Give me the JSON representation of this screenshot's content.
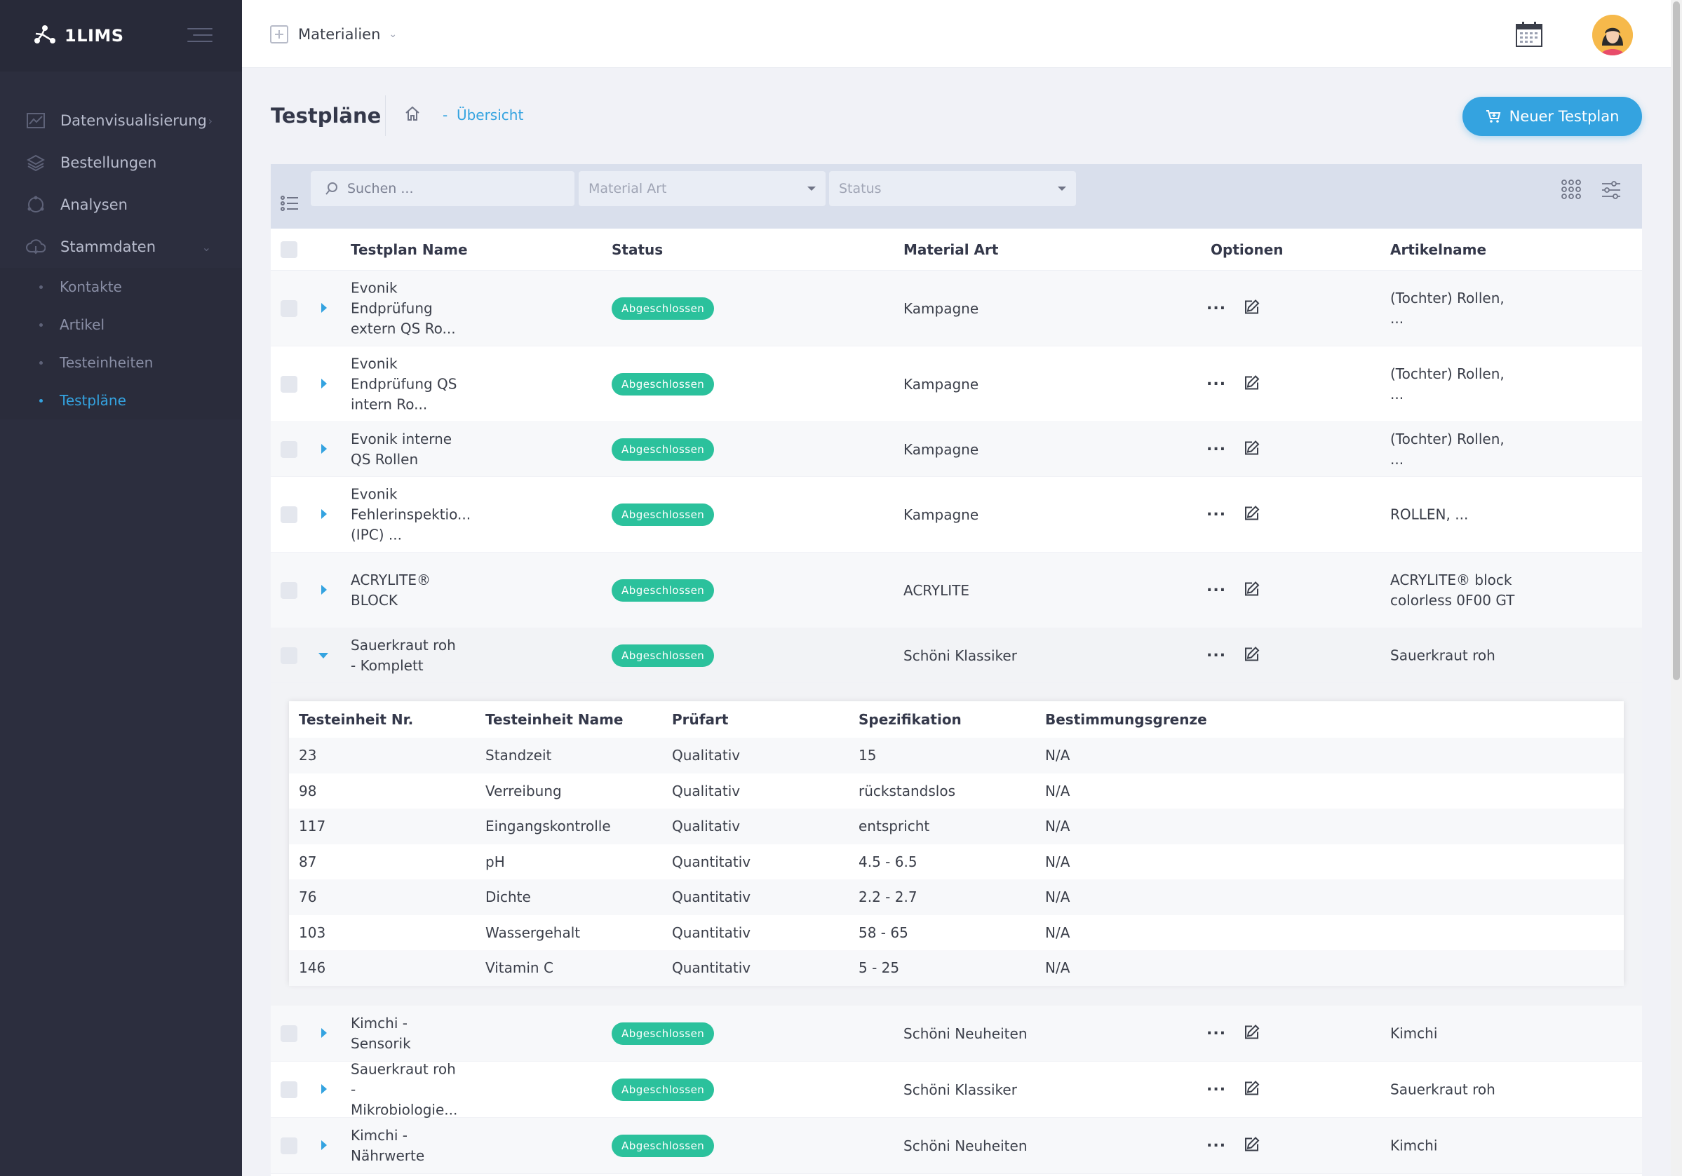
{
  "sidebar": {
    "brand": "1LIMS",
    "items": [
      {
        "label": "Datenvisualisierung",
        "icon": "chart-line-icon",
        "has_arrow": true
      },
      {
        "label": "Bestellungen",
        "icon": "layers-icon"
      },
      {
        "label": "Analysen",
        "icon": "circle-icon"
      },
      {
        "label": "Stammdaten",
        "icon": "cloud-icon",
        "expanded": true
      }
    ],
    "subitems": [
      {
        "label": "Kontakte"
      },
      {
        "label": "Artikel"
      },
      {
        "label": "Testeinheiten"
      },
      {
        "label": "Testpläne",
        "active": true
      }
    ]
  },
  "topbar": {
    "module": "Materialien"
  },
  "page": {
    "title": "Testpläne",
    "breadcrumb_sep": "-",
    "breadcrumb": "Übersicht",
    "new_button": "Neuer Testplan"
  },
  "filters": {
    "search_placeholder": "Suchen ...",
    "material_art_placeholder": "Material Art",
    "status_placeholder": "Status"
  },
  "table": {
    "headers": {
      "name": "Testplan Name",
      "status": "Status",
      "material": "Material Art",
      "options": "Optionen",
      "article": "Artikelname"
    },
    "dots": "···",
    "rows": [
      {
        "name": "Evonik Endprüfung extern QS Ro...",
        "status": "Abgeschlossen",
        "material": "Kampagne",
        "article": "(Tochter) Rollen, ..."
      },
      {
        "name": "Evonik Endprüfung QS intern Ro...",
        "status": "Abgeschlossen",
        "material": "Kampagne",
        "article": "(Tochter) Rollen, ..."
      },
      {
        "name": "Evonik interne QS Rollen",
        "status": "Abgeschlossen",
        "material": "Kampagne",
        "article": "(Tochter) Rollen, ..."
      },
      {
        "name": "Evonik Fehlerinspektio... (IPC) ...",
        "status": "Abgeschlossen",
        "material": "Kampagne",
        "article": "ROLLEN, ..."
      },
      {
        "name": "ACRYLITE® BLOCK",
        "status": "Abgeschlossen",
        "material": "ACRYLITE",
        "article": "ACRYLITE® block colorless 0F00 GT"
      },
      {
        "name": "Sauerkraut roh - Komplett",
        "status": "Abgeschlossen",
        "material": "Schöni Klassiker",
        "article": "Sauerkraut roh",
        "expanded": true
      },
      {
        "name": "Kimchi -Sensorik",
        "status": "Abgeschlossen",
        "material": "Schöni Neuheiten",
        "article": "Kimchi"
      },
      {
        "name": "Sauerkraut roh - Mikrobiologie...",
        "status": "Abgeschlossen",
        "material": "Schöni Klassiker",
        "article": "Sauerkraut roh"
      },
      {
        "name": "Kimchi - Nährwerte",
        "status": "Abgeschlossen",
        "material": "Schöni Neuheiten",
        "article": "Kimchi"
      }
    ]
  },
  "detail": {
    "headers": {
      "nr": "Testeinheit Nr.",
      "name": "Testeinheit Name",
      "pruefart": "Prüfart",
      "spec": "Spezifikation",
      "limit": "Bestimmungsgrenze"
    },
    "rows": [
      {
        "nr": "23",
        "name": "Standzeit",
        "pruefart": "Qualitativ",
        "spec": "15",
        "limit": "N/A"
      },
      {
        "nr": "98",
        "name": "Verreibung",
        "pruefart": "Qualitativ",
        "spec": "rückstandslos",
        "limit": "N/A"
      },
      {
        "nr": "117",
        "name": "Eingangskontrolle",
        "pruefart": "Qualitativ",
        "spec": "entspricht",
        "limit": "N/A"
      },
      {
        "nr": "87",
        "name": "pH",
        "pruefart": "Quantitativ",
        "spec": "4.5 - 6.5",
        "limit": "N/A"
      },
      {
        "nr": "76",
        "name": "Dichte",
        "pruefart": "Quantitativ",
        "spec": "2.2 - 2.7",
        "limit": "N/A"
      },
      {
        "nr": "103",
        "name": "Wassergehalt",
        "pruefart": "Quantitativ",
        "spec": "58 - 65",
        "limit": "N/A"
      },
      {
        "nr": "146",
        "name": "Vitamin C",
        "pruefart": "Quantitativ",
        "spec": "5 - 25",
        "limit": "N/A"
      }
    ]
  },
  "colors": {
    "accent": "#34a3e0",
    "status_done": "#2bc19c",
    "sidebar_bg": "#2c2e3e"
  }
}
